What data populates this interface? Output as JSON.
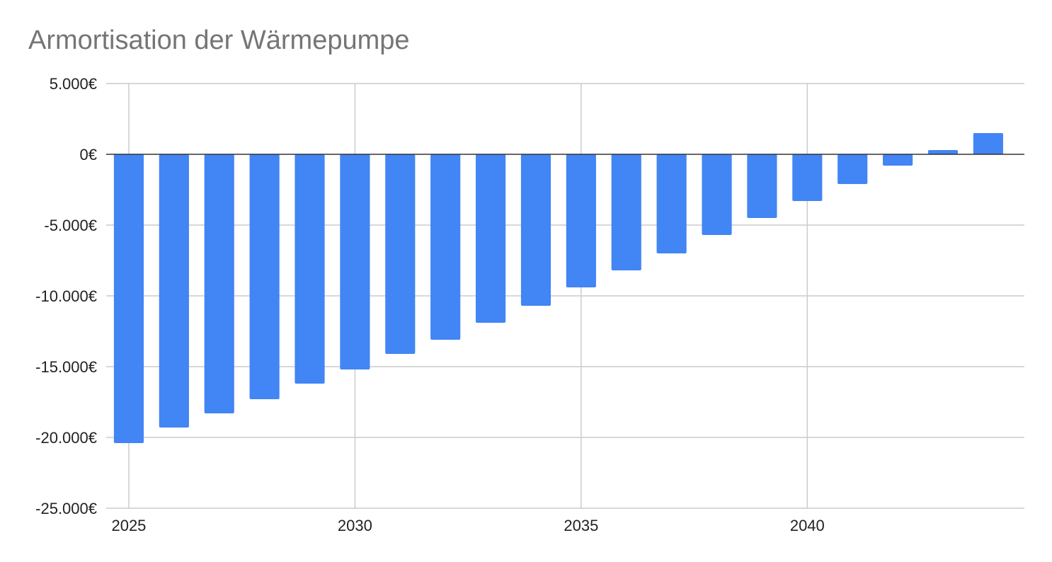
{
  "chart_data": {
    "type": "bar",
    "title": "Armortisation der Wärmepumpe",
    "xlabel": "",
    "ylabel": "",
    "x": [
      2025,
      2026,
      2027,
      2028,
      2029,
      2030,
      2031,
      2032,
      2033,
      2034,
      2035,
      2036,
      2037,
      2038,
      2039,
      2040,
      2041,
      2042,
      2043,
      2044
    ],
    "values": [
      -20400,
      -19300,
      -18300,
      -17300,
      -16200,
      -15200,
      -14100,
      -13100,
      -11900,
      -10700,
      -9400,
      -8200,
      -7000,
      -5700,
      -4500,
      -3300,
      -2100,
      -800,
      300,
      1500
    ],
    "x_ticks": [
      {
        "value": 2025,
        "label": "2025"
      },
      {
        "value": 2030,
        "label": "2030"
      },
      {
        "value": 2035,
        "label": "2035"
      },
      {
        "value": 2040,
        "label": "2040"
      }
    ],
    "y_ticks": [
      {
        "value": 5000,
        "label": "5.000€"
      },
      {
        "value": 0,
        "label": "0€"
      },
      {
        "value": -5000,
        "label": "-5.000€"
      },
      {
        "value": -10000,
        "label": "-10.000€"
      },
      {
        "value": -15000,
        "label": "-15.000€"
      },
      {
        "value": -20000,
        "label": "-20.000€"
      },
      {
        "value": -25000,
        "label": "-25.000€"
      }
    ],
    "ylim": [
      -25000,
      5000
    ],
    "xlim": [
      2024.5,
      2044.8
    ],
    "grid": true,
    "legend": "none",
    "bar_color": "#4285f4"
  }
}
